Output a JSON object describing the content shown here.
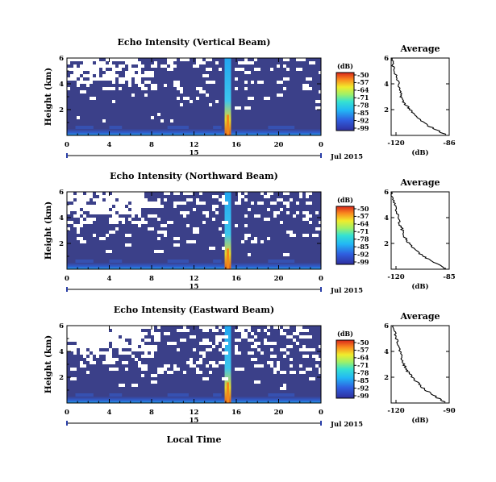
{
  "figure": {
    "bottom_xlabel": "Local Time",
    "date_label": "Jul 2015",
    "day_label": "15"
  },
  "chart_data": [
    {
      "type": "heatmap",
      "title": "Echo Intensity (Vertical Beam)",
      "ylabel": "Height (km)",
      "xlim": [
        0,
        24
      ],
      "xticks": [
        "0",
        "4",
        "8",
        "12",
        "16",
        "20",
        "0"
      ],
      "ylim": [
        0,
        6
      ],
      "yticks": [
        "6",
        "4",
        "2"
      ],
      "colorbar": {
        "label": "(dB)",
        "ticks": [
          "-50",
          "-57",
          "-64",
          "-71",
          "-78",
          "-85",
          "-92",
          "-99"
        ]
      },
      "noise_floor_db": -99,
      "peak_column_hour": 15.2,
      "peak_db": -50,
      "sparse_gaps": "upper levels above ~3 km show white (no-data) patches, largest 0-7 h between 4.5-5.5 km"
    },
    {
      "type": "line",
      "title": "Average",
      "xlabel": "(dB)",
      "xticks": [
        "-120",
        "-86"
      ],
      "xlim": [
        -120,
        -86
      ],
      "yticks": [
        "6",
        "4",
        "2"
      ],
      "ylim": [
        0,
        6
      ],
      "series": [
        {
          "x": [
            -119.5,
            -119,
            -118,
            -116,
            -115,
            -114,
            -113,
            -110,
            -108,
            -104,
            -99,
            -93,
            -88
          ],
          "y": [
            6.0,
            5.5,
            4.9,
            4.2,
            3.4,
            3.0,
            2.6,
            2.2,
            1.8,
            1.3,
            0.8,
            0.4,
            0.05
          ]
        }
      ]
    },
    {
      "type": "heatmap",
      "title": "Echo Intensity (Northward Beam)",
      "ylabel": "Height (km)",
      "xlim": [
        0,
        24
      ],
      "xticks": [
        "0",
        "4",
        "8",
        "12",
        "16",
        "20",
        "0"
      ],
      "ylim": [
        0,
        6
      ],
      "yticks": [
        "6",
        "4",
        "2"
      ],
      "colorbar": {
        "label": "(dB)",
        "ticks": [
          "-50",
          "-57",
          "-64",
          "-71",
          "-78",
          "-85",
          "-92",
          "-99"
        ]
      },
      "noise_floor_db": -99,
      "peak_column_hour": 15.2,
      "peak_db": -50
    },
    {
      "type": "line",
      "title": "Average",
      "xlabel": "(dB)",
      "xticks": [
        "-120",
        "-85"
      ],
      "xlim": [
        -120,
        -85
      ],
      "yticks": [
        "6",
        "4",
        "2"
      ],
      "ylim": [
        0,
        6
      ],
      "series": [
        {
          "x": [
            -119.5,
            -119,
            -117,
            -116,
            -115,
            -113,
            -112,
            -110,
            -107,
            -103,
            -98,
            -92,
            -87
          ],
          "y": [
            6.0,
            5.4,
            4.8,
            4.1,
            3.5,
            3.0,
            2.5,
            2.1,
            1.7,
            1.2,
            0.8,
            0.4,
            0.05
          ]
        }
      ]
    },
    {
      "type": "heatmap",
      "title": "Echo Intensity (Eastward Beam)",
      "ylabel": "Height (km)",
      "xlim": [
        0,
        24
      ],
      "xticks": [
        "0",
        "4",
        "8",
        "12",
        "16",
        "20",
        "0"
      ],
      "ylim": [
        0,
        6
      ],
      "yticks": [
        "6",
        "4",
        "2"
      ],
      "colorbar": {
        "label": "(dB)",
        "ticks": [
          "-50",
          "-57",
          "-64",
          "-71",
          "-78",
          "-85",
          "-92",
          "-99"
        ]
      },
      "noise_floor_db": -99,
      "peak_column_hour": 15.2,
      "peak_db": -50
    },
    {
      "type": "line",
      "title": "Average",
      "xlabel": "(dB)",
      "xticks": [
        "-120",
        "-90"
      ],
      "xlim": [
        -120,
        -90
      ],
      "yticks": [
        "6",
        "4",
        "2"
      ],
      "ylim": [
        0,
        6
      ],
      "series": [
        {
          "x": [
            -119,
            -118,
            -117,
            -116,
            -115,
            -114,
            -112,
            -110,
            -107,
            -104,
            -100,
            -96,
            -92
          ],
          "y": [
            6.0,
            5.5,
            4.9,
            4.3,
            3.6,
            3.1,
            2.6,
            2.2,
            1.7,
            1.2,
            0.8,
            0.4,
            0.05
          ]
        }
      ]
    }
  ]
}
